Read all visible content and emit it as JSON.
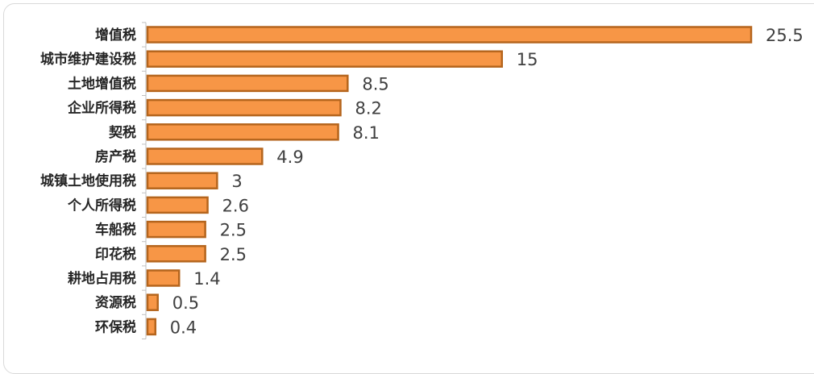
{
  "chart_data": {
    "type": "bar",
    "orientation": "horizontal",
    "categories": [
      "增值税",
      "城市维护建设税",
      "土地增值税",
      "企业所得税",
      "契税",
      "房产税",
      "城镇土地使用税",
      "个人所得税",
      "车船税",
      "印花税",
      "耕地占用税",
      "资源税",
      "环保税"
    ],
    "values": [
      25.5,
      15,
      8.5,
      8.2,
      8.1,
      4.9,
      3,
      2.6,
      2.5,
      2.5,
      1.4,
      0.5,
      0.4
    ],
    "value_labels": [
      "25.5",
      "15",
      "8.5",
      "8.2",
      "8.1",
      "4.9",
      "3",
      "2.6",
      "2.5",
      "2.5",
      "1.4",
      "0.5",
      "0.4"
    ],
    "title": "",
    "xlabel": "",
    "ylabel": "",
    "xlim": [
      0,
      25.5
    ],
    "grid": false,
    "legend": "none",
    "colors": {
      "bar_fill": "#f79646",
      "bar_stroke": "#b5651d",
      "axis": "#bfbfbf",
      "label_text": "#262626",
      "value_text": "#404040"
    }
  }
}
